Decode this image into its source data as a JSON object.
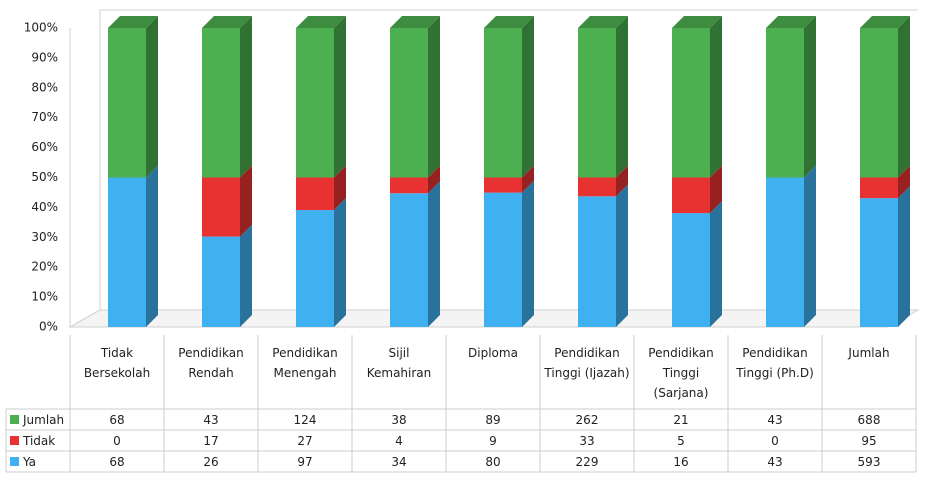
{
  "chart_data": {
    "type": "bar",
    "stacking": "percent",
    "grid": false,
    "categories": [
      "Tidak Bersekolah",
      "Pendidikan Rendah",
      "Pendidikan Menengah",
      "Sijil Kemahiran",
      "Diploma",
      "Pendidikan Tinggi (Ijazah)",
      "Pendidikan Tinggi (Sarjana)",
      "Pendidikan Tinggi (Ph.D)",
      "Jumlah"
    ],
    "series": [
      {
        "name": "Ya",
        "color": "#3fb0f0",
        "values": [
          68,
          26,
          97,
          34,
          80,
          229,
          16,
          43,
          593
        ]
      },
      {
        "name": "Tidak",
        "color": "#e83232",
        "values": [
          0,
          17,
          27,
          4,
          9,
          33,
          5,
          0,
          95
        ]
      },
      {
        "name": "Jumlah",
        "color": "#4caf50",
        "values": [
          68,
          43,
          124,
          38,
          89,
          262,
          21,
          43,
          688
        ]
      }
    ],
    "ylim": [
      0,
      100
    ],
    "yticks": [
      {
        "value": 0,
        "label": "0%"
      },
      {
        "value": 10,
        "label": "10%"
      },
      {
        "value": 20,
        "label": "20%"
      },
      {
        "value": 30,
        "label": "30%"
      },
      {
        "value": 40,
        "label": "40%"
      },
      {
        "value": 50,
        "label": "50%"
      },
      {
        "value": 60,
        "label": "60%"
      },
      {
        "value": 70,
        "label": "70%"
      },
      {
        "value": 80,
        "label": "80%"
      },
      {
        "value": 90,
        "label": "90%"
      },
      {
        "value": 100,
        "label": "100%"
      }
    ]
  }
}
